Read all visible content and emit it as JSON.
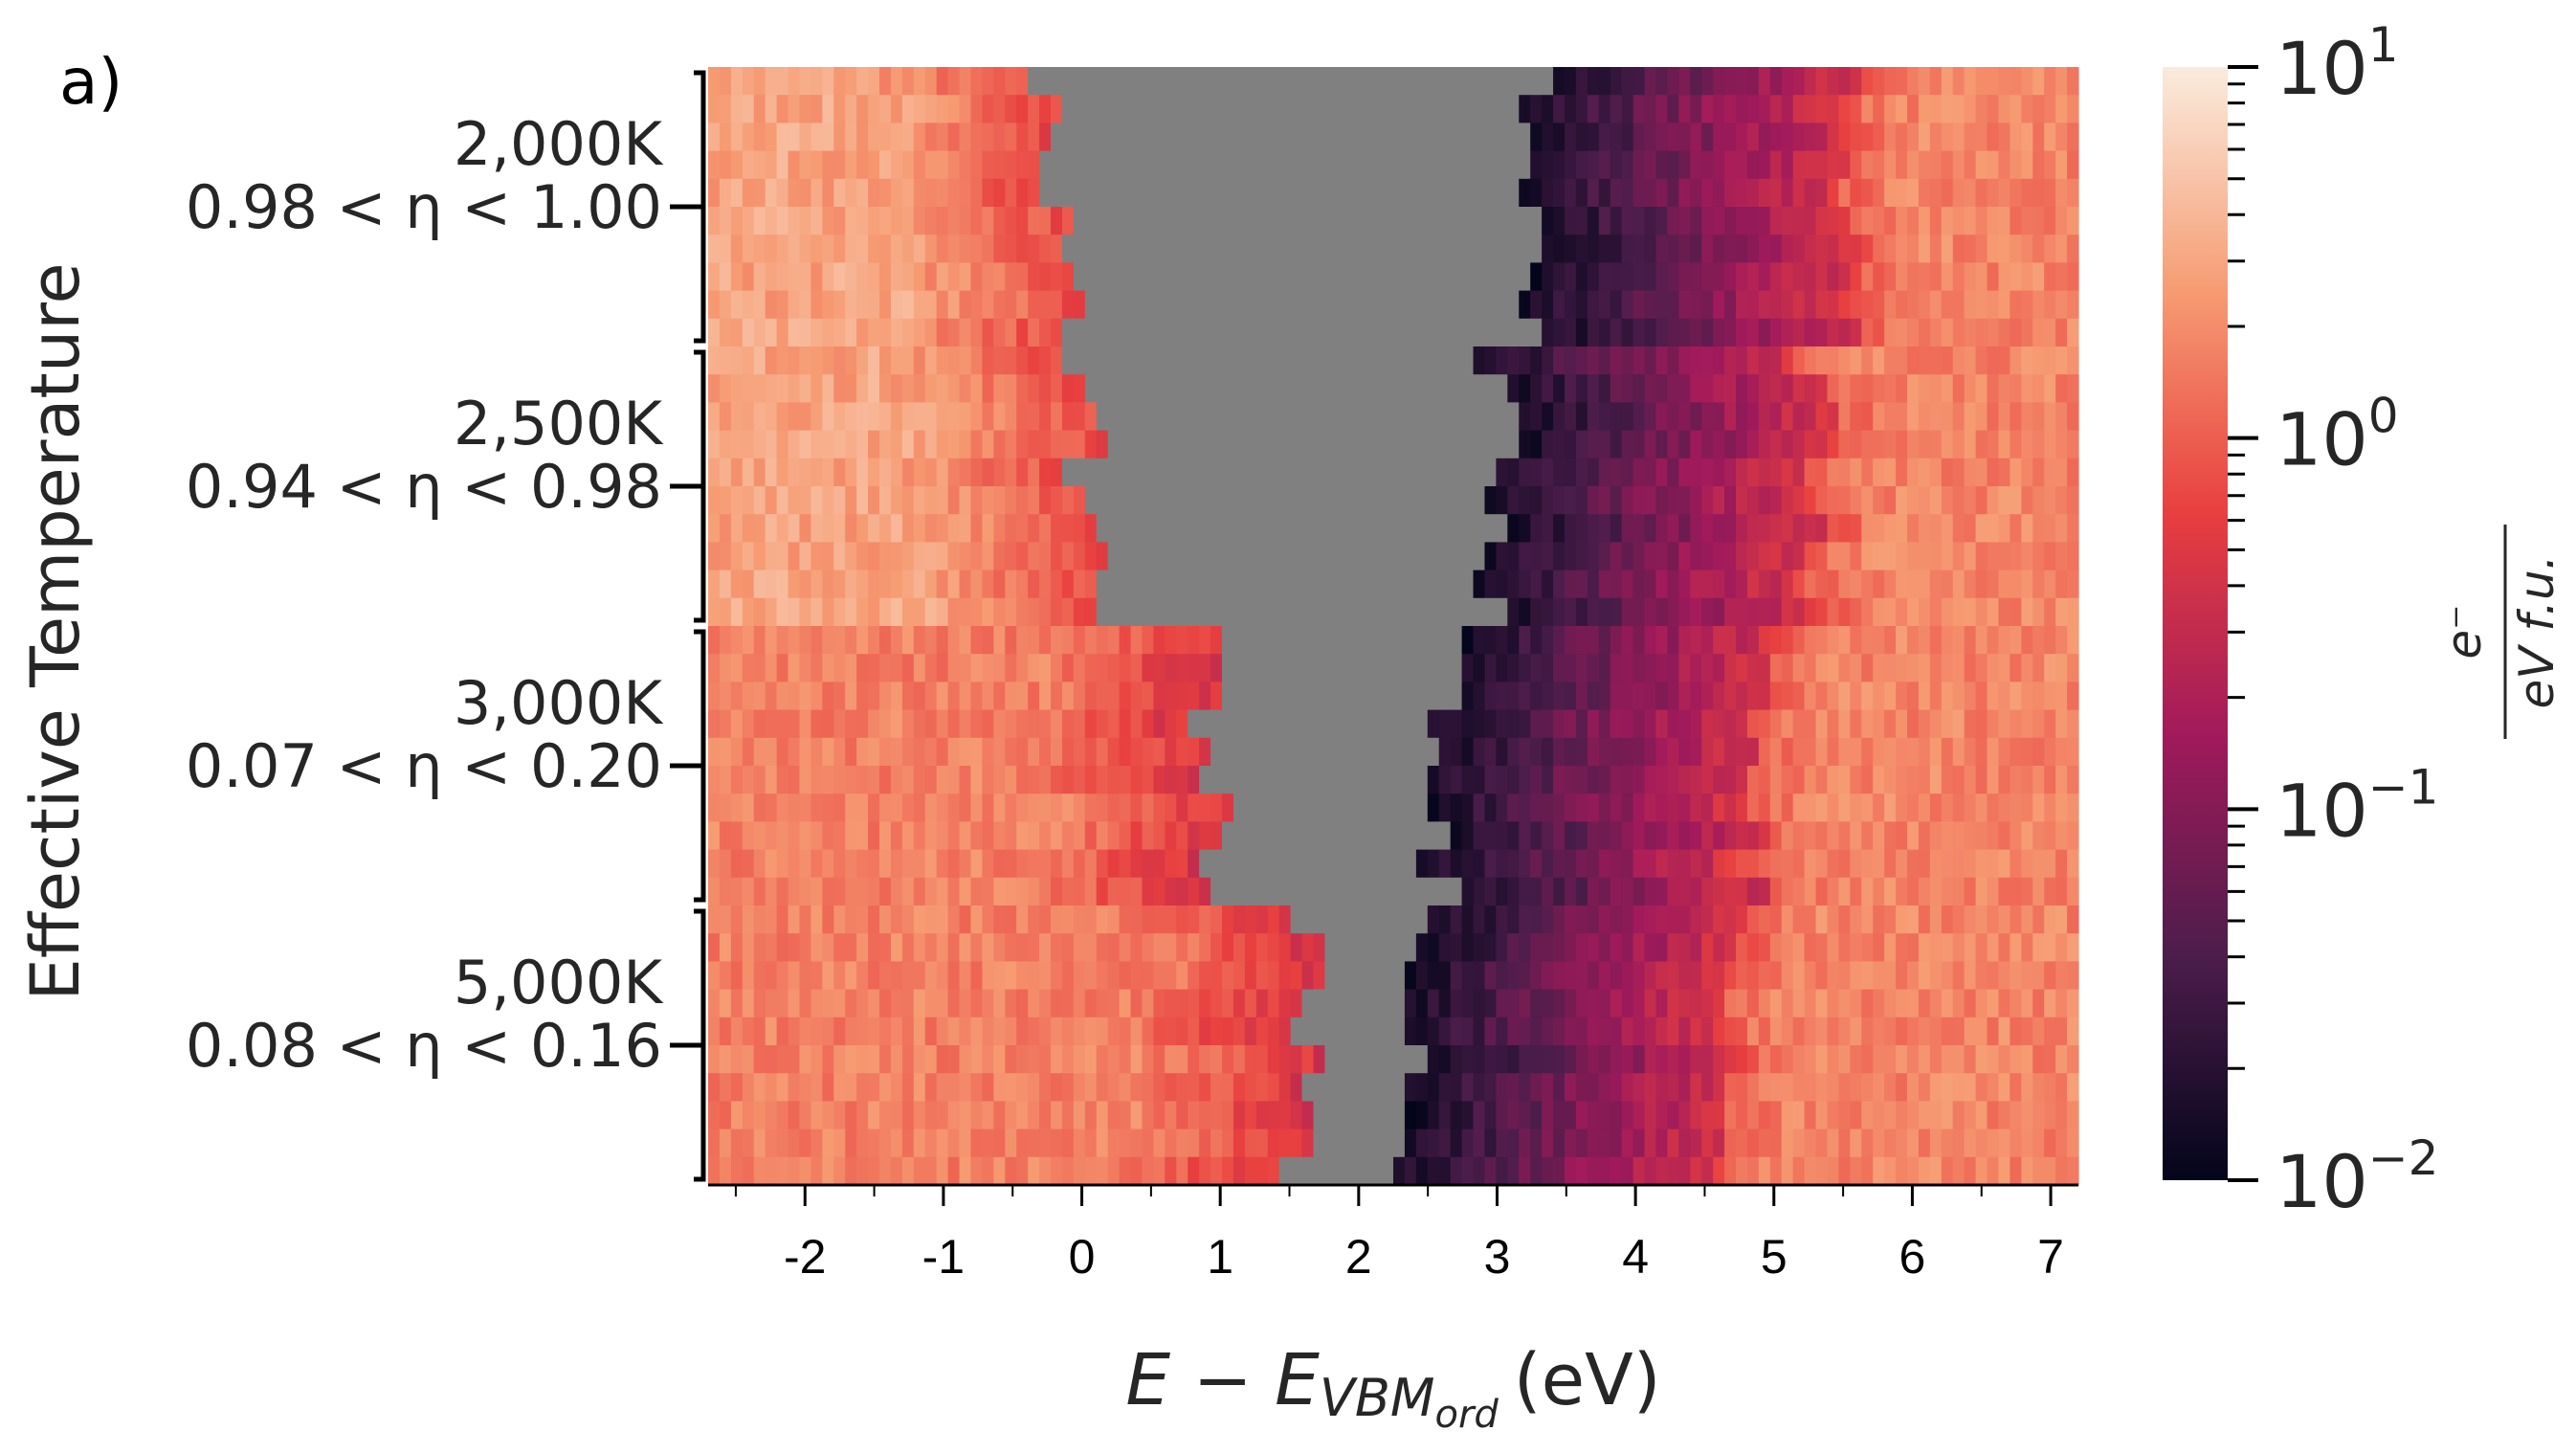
{
  "panel_label": "a)",
  "chart_data": {
    "type": "heatmap",
    "xlabel": "E − E_VBM_ord (eV)",
    "xlabel_parts": {
      "main": "E − E",
      "sub": "VBM",
      "subsub": "ord",
      "unit": "(eV)"
    },
    "ylabel": "Effective Temperature",
    "xlim": [
      -2.7,
      7.2
    ],
    "x_ticks": [
      -2,
      -1,
      0,
      1,
      2,
      3,
      4,
      5,
      6,
      7
    ],
    "x_tick_labels": [
      "-2",
      "-1",
      "0",
      "1",
      "2",
      "3",
      "4",
      "5",
      "6",
      "7"
    ],
    "groups": [
      {
        "temperature": "2,000K",
        "eta_range": "0.98 < η < 1.00",
        "gap": [
          -0.2,
          3.2
        ]
      },
      {
        "temperature": "2,500K",
        "eta_range": "0.94 < η < 0.98",
        "gap": [
          0.0,
          3.0
        ]
      },
      {
        "temperature": "3,000K",
        "eta_range": "0.07 < η < 0.20",
        "gap": [
          0.9,
          2.6
        ]
      },
      {
        "temperature": "5,000K",
        "eta_range": "0.08 < η < 0.16",
        "gap": [
          1.6,
          2.4
        ]
      }
    ],
    "colorbar": {
      "scale": "log",
      "range": [
        0.01,
        10
      ],
      "ticks": [
        {
          "base": "10",
          "exp": "1"
        },
        {
          "base": "10",
          "exp": "0"
        },
        {
          "base": "10",
          "exp": "−1"
        },
        {
          "base": "10",
          "exp": "−2"
        }
      ],
      "label_numerator": "e⁻",
      "label_denominator": "eV f.u.",
      "colormap_stops": [
        "#03051a",
        "#4c1d4b",
        "#a11a5b",
        "#e83f3f",
        "#f69c73",
        "#faebdd"
      ]
    },
    "masked_color": "#808080",
    "grid": false
  }
}
